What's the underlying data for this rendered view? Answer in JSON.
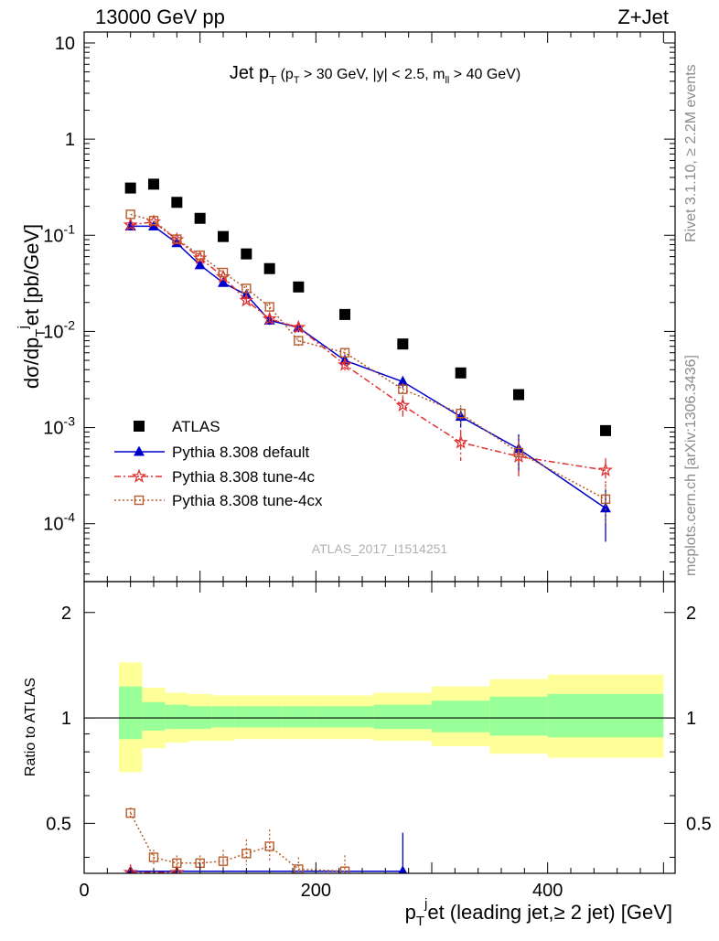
{
  "header": {
    "left": "13000 GeV pp",
    "right": "Z+Jet"
  },
  "side_labels": {
    "rivet": "Rivet 3.1.10, ≥ 2.2M events",
    "mcplots": "mcplots.cern.ch [arXiv:1306.3436]"
  },
  "colors": {
    "atlas": "#000000",
    "default": "#0000cc",
    "tune4c": "#e03030",
    "tune4cx": "#b85a2a",
    "band_outer": "#ffff99",
    "band_inner": "#99ff99"
  },
  "chart_data": [
    {
      "type": "scatter",
      "title": "Jet p_T (p_T > 30 GeV, |y| < 2.5, m_ll > 40 GeV)",
      "ylabel": "dσ/dp_T^j et [pb/GeV]",
      "yscale": "log",
      "ylim": [
        2.5e-05,
        13
      ],
      "xlim": [
        0,
        510
      ],
      "ytick_labels": [
        "10^-4",
        "10^-3",
        "10^-2",
        "10^-1",
        "1",
        "10"
      ],
      "watermark": "ATLAS_2017_I1514251",
      "legend": {
        "placement": "lower-left",
        "entries": [
          "ATLAS",
          "Pythia 8.308 default",
          "Pythia 8.308 tune-4c",
          "Pythia 8.308 tune-4cx"
        ]
      },
      "series": [
        {
          "name": "ATLAS",
          "style": "square",
          "x": [
            40,
            60,
            80,
            100,
            120,
            140,
            160,
            185,
            225,
            275,
            325,
            375,
            450
          ],
          "y": [
            0.31,
            0.34,
            0.22,
            0.15,
            0.097,
            0.064,
            0.045,
            0.029,
            0.015,
            0.0074,
            0.0037,
            0.0022,
            0.00093
          ]
        },
        {
          "name": "Pythia 8.308 default",
          "style": "triangle-solid-line",
          "x": [
            40,
            60,
            80,
            100,
            120,
            140,
            160,
            185,
            225,
            275,
            325,
            375,
            450
          ],
          "y": [
            0.124,
            0.124,
            0.083,
            0.049,
            0.032,
            0.024,
            0.013,
            0.011,
            0.005,
            0.003,
            0.0013,
            0.0006,
            0.000145
          ],
          "err_low": [
            0,
            0,
            0,
            0,
            0,
            0.0015,
            0.0013,
            0.0012,
            0.0005,
            0.0004,
            0.0003,
            0.00025,
            8e-05
          ],
          "err_high": [
            0,
            0,
            0,
            0,
            0,
            0.0015,
            0.0013,
            0.0012,
            0.0005,
            0.0004,
            0.0003,
            0.00025,
            8e-05
          ]
        },
        {
          "name": "Pythia 8.308 tune-4c",
          "style": "star-dashdot",
          "x": [
            40,
            60,
            80,
            100,
            120,
            140,
            160,
            185,
            225,
            275,
            325,
            375,
            450
          ],
          "y": [
            0.128,
            0.138,
            0.09,
            0.058,
            0.037,
            0.021,
            0.0135,
            0.011,
            0.0045,
            0.0017,
            0.0007,
            0.0005,
            0.00036
          ],
          "err_low": [
            0,
            0,
            0,
            0,
            0,
            0.002,
            0.0015,
            0.0012,
            0.0006,
            0.0004,
            0.00025,
            0.0002,
            0.00012
          ],
          "err_high": [
            0,
            0,
            0,
            0,
            0,
            0.002,
            0.0015,
            0.0012,
            0.0006,
            0.0004,
            0.00025,
            0.0002,
            0.00012
          ]
        },
        {
          "name": "Pythia 8.308 tune-4cx",
          "style": "open-square-dotted",
          "x": [
            40,
            60,
            80,
            100,
            120,
            140,
            160,
            185,
            225,
            275,
            325,
            375,
            450
          ],
          "y": [
            0.165,
            0.142,
            0.091,
            0.062,
            0.041,
            0.028,
            0.018,
            0.008,
            0.006,
            0.0025,
            0.0014,
            0.00055,
            0.00018
          ],
          "err_low": [
            0,
            0,
            0,
            0,
            0,
            0.002,
            0.0015,
            0.001,
            0.0006,
            0.0004,
            0.0003,
            0.00025,
            8e-05
          ],
          "err_high": [
            0,
            0,
            0,
            0,
            0,
            0.002,
            0.0015,
            0.001,
            0.0006,
            0.0004,
            0.0003,
            0.00025,
            8e-05
          ]
        }
      ]
    },
    {
      "type": "line",
      "ylabel": "Ratio to ATLAS",
      "xlabel": "p_T^j et (leading jet,≥ 2 jet) [GeV]",
      "yscale": "log",
      "ylim": [
        0.36,
        2.45
      ],
      "xlim": [
        0,
        510
      ],
      "ytick_labels": [
        "0.5",
        "1",
        "2"
      ],
      "xtick_labels": [
        "0",
        "200",
        "400"
      ],
      "bands": {
        "edges": [
          30,
          50,
          70,
          90,
          110,
          130,
          150,
          170,
          200,
          250,
          300,
          350,
          400,
          500
        ],
        "outer_low": [
          0.7,
          0.82,
          0.85,
          0.86,
          0.86,
          0.87,
          0.87,
          0.87,
          0.87,
          0.86,
          0.83,
          0.79,
          0.77
        ],
        "outer_high": [
          1.44,
          1.22,
          1.18,
          1.17,
          1.16,
          1.16,
          1.16,
          1.16,
          1.16,
          1.18,
          1.23,
          1.29,
          1.33
        ],
        "inner_low": [
          0.87,
          0.92,
          0.93,
          0.93,
          0.94,
          0.94,
          0.94,
          0.94,
          0.94,
          0.93,
          0.91,
          0.89,
          0.88
        ],
        "inner_high": [
          1.23,
          1.11,
          1.09,
          1.08,
          1.08,
          1.08,
          1.08,
          1.08,
          1.08,
          1.09,
          1.12,
          1.15,
          1.17
        ]
      },
      "series": [
        {
          "name": "Pythia 8.308 default",
          "style": "triangle-solid-line",
          "x": [
            40,
            275
          ],
          "y": [
            0.365,
            0.365
          ],
          "err_low": [
            0,
            0
          ],
          "err_high": [
            0,
            0.105
          ]
        },
        {
          "name": "Pythia 8.308 tune-4c",
          "style": "star-dashdot",
          "x": [
            40,
            80
          ],
          "y": [
            0.362,
            0.362
          ],
          "err_low": [
            0,
            0
          ],
          "err_high": [
            0.02,
            0
          ]
        },
        {
          "name": "Pythia 8.308 tune-4cx",
          "style": "open-square-dotted",
          "x": [
            40,
            60,
            80,
            100,
            120,
            140,
            160,
            185,
            225
          ],
          "y": [
            0.535,
            0.4,
            0.385,
            0.385,
            0.39,
            0.41,
            0.43,
            0.37,
            0.365
          ],
          "err_low": [
            0.02,
            0.02,
            0.02,
            0.02,
            0.02,
            0.03,
            0.04,
            0.03,
            0.03
          ],
          "err_high": [
            0.02,
            0.02,
            0.02,
            0.02,
            0.03,
            0.04,
            0.05,
            0.03,
            0.04
          ]
        }
      ]
    }
  ]
}
